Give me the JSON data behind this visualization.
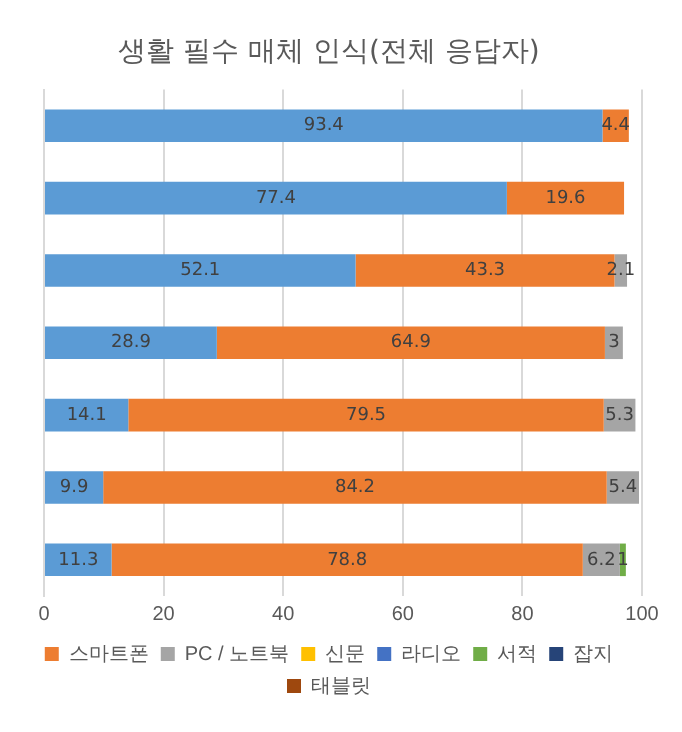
{
  "chart_data": {
    "type": "bar",
    "orientation": "horizontal",
    "stacked": true,
    "title": "생활 필수 매체 인식(전체 응답자)",
    "categories": [
      null,
      null,
      null,
      null,
      null,
      null,
      null
    ],
    "series": [
      {
        "color": "#5b9bd5",
        "values": [
          93.4,
          77.4,
          52.1,
          28.9,
          14.1,
          9.9,
          11.3
        ]
      },
      {
        "name": "스마트폰",
        "color": "#ed7d31",
        "values": [
          4.4,
          19.6,
          43.3,
          64.9,
          79.5,
          84.2,
          78.8
        ]
      },
      {
        "name": "PC / 노트북",
        "color": "#a5a5a5",
        "values": [
          null,
          null,
          2.1,
          3.0,
          5.3,
          5.4,
          6.2
        ]
      },
      {
        "name": "신문",
        "color": "#ffc000",
        "values": [
          null,
          null,
          null,
          null,
          null,
          null,
          null
        ]
      },
      {
        "name": "라디오",
        "color": "#4472c4",
        "values": [
          null,
          null,
          null,
          null,
          null,
          null,
          null
        ]
      },
      {
        "name": "서적",
        "color": "#70ad47",
        "values": [
          null,
          null,
          null,
          null,
          null,
          null,
          1.0
        ]
      },
      {
        "name": "잡지",
        "color": "#264478",
        "values": [
          null,
          null,
          null,
          null,
          null,
          null,
          null
        ]
      },
      {
        "name": "태블릿",
        "color": "#9e480e",
        "values": [
          null,
          null,
          null,
          null,
          null,
          null,
          null
        ]
      }
    ],
    "xlim": [
      0,
      100
    ],
    "xticks": [
      0,
      20,
      40,
      60,
      80,
      100
    ],
    "grid": "x",
    "legend": "bottom",
    "data_labels": true
  }
}
